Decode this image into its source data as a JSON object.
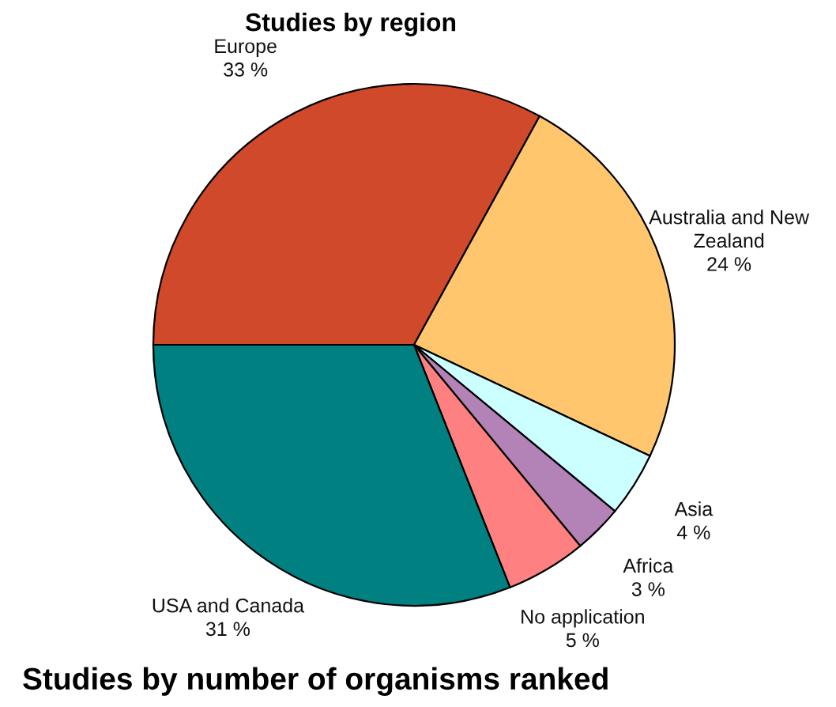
{
  "chart_data": {
    "type": "pie",
    "title": "Studies by region",
    "categories": [
      "Europe",
      "Australia and New Zealand",
      "Asia",
      "Africa",
      "No application",
      "USA and Canada"
    ],
    "values": [
      33,
      24,
      4,
      3,
      5,
      31
    ],
    "value_labels": [
      "33 %",
      "24 %",
      "4 %",
      "3 %",
      "5 %",
      "31 %"
    ],
    "colors": [
      "#d0492b",
      "#ffc66e",
      "#ccffff",
      "#b383b8",
      "#ff8080",
      "#008080"
    ],
    "annotations": [
      "Studies by number of organisms ranked"
    ]
  }
}
